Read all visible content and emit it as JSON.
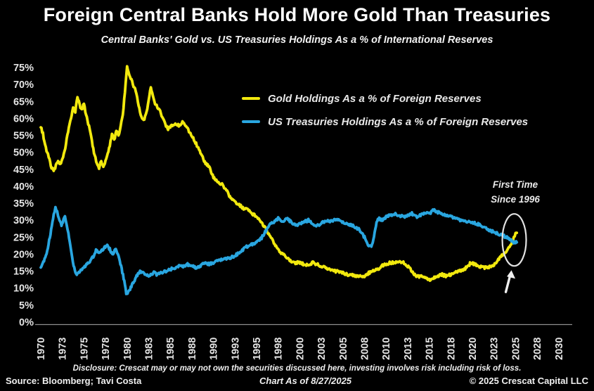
{
  "header": {
    "title": "Foreign Central Banks Hold More Gold Than Treasuries",
    "subtitle": "Central Banks' Gold vs. US Treasuries Holdings As a % of International Reserves"
  },
  "footer": {
    "disclosure": "Disclosure: Crescat may or may not own the securities discussed here, investing involves risk including risk of loss.",
    "source": "Source: Bloomberg; Tavi Costa",
    "as_of": "Chart As of 8/27/2025",
    "copyright": "© 2025 Crescat Capital LLC"
  },
  "chart_data": {
    "type": "line",
    "title": "Foreign Central Banks Hold More Gold Than Treasuries",
    "subtitle": "Central Banks' Gold vs. US Treasuries Holdings As a % of International Reserves",
    "xlabel": "",
    "ylabel": "",
    "ylim": [
      0,
      75
    ],
    "xlim": [
      1970,
      2030
    ],
    "grid": false,
    "legend_position": "upper middle",
    "background": "#000000",
    "y_tick_labels": [
      "75%",
      "70%",
      "65%",
      "60%",
      "55%",
      "50%",
      "45%",
      "40%",
      "35%",
      "30%",
      "25%",
      "20%",
      "15%",
      "10%",
      "5%",
      "0%"
    ],
    "x_tick_labels": [
      "1970",
      "1973",
      "1975",
      "1978",
      "1980",
      "1983",
      "1985",
      "1988",
      "1990",
      "1993",
      "1995",
      "1998",
      "2000",
      "2003",
      "2005",
      "2008",
      "2010",
      "2013",
      "2015",
      "2018",
      "2020",
      "2023",
      "2025",
      "2028",
      "2030"
    ],
    "annotation": {
      "label_line1": "First Time",
      "label_line2": "Since 1996",
      "x_year": 2024.85,
      "y_value": 24.2
    },
    "series": [
      {
        "id": "gold-series",
        "name": "Gold Holdings As a % of Foreign Reserves",
        "color": "#f2e90e",
        "points": [
          [
            1970.0,
            57.5
          ],
          [
            1970.25,
            55.5
          ],
          [
            1970.5,
            52
          ],
          [
            1970.75,
            50
          ],
          [
            1971.0,
            48
          ],
          [
            1971.25,
            45.5
          ],
          [
            1971.5,
            44.5
          ],
          [
            1971.75,
            46
          ],
          [
            1972.0,
            47.5
          ],
          [
            1972.25,
            46.5
          ],
          [
            1972.5,
            48
          ],
          [
            1972.75,
            50
          ],
          [
            1973.0,
            54
          ],
          [
            1973.25,
            57
          ],
          [
            1973.5,
            60
          ],
          [
            1973.75,
            63.5
          ],
          [
            1974.0,
            62
          ],
          [
            1974.25,
            66.5
          ],
          [
            1974.5,
            64
          ],
          [
            1974.75,
            62.5
          ],
          [
            1975.0,
            64.5
          ],
          [
            1975.25,
            61
          ],
          [
            1975.5,
            58.5
          ],
          [
            1975.75,
            56
          ],
          [
            1976.0,
            52
          ],
          [
            1976.25,
            49
          ],
          [
            1976.5,
            46.5
          ],
          [
            1976.75,
            45.5
          ],
          [
            1977.0,
            47.5
          ],
          [
            1977.25,
            46
          ],
          [
            1977.5,
            47.5
          ],
          [
            1977.75,
            49.5
          ],
          [
            1978.0,
            52
          ],
          [
            1978.25,
            55.5
          ],
          [
            1978.5,
            53.5
          ],
          [
            1978.75,
            56.5
          ],
          [
            1979.0,
            55
          ],
          [
            1979.25,
            57.5
          ],
          [
            1979.5,
            61
          ],
          [
            1979.75,
            68
          ],
          [
            1980.0,
            75
          ],
          [
            1980.25,
            73
          ],
          [
            1980.5,
            71.5
          ],
          [
            1980.75,
            69.5
          ],
          [
            1981.0,
            68
          ],
          [
            1981.25,
            65
          ],
          [
            1981.5,
            62
          ],
          [
            1981.75,
            60
          ],
          [
            1982.0,
            59.5
          ],
          [
            1982.25,
            62
          ],
          [
            1982.5,
            65.5
          ],
          [
            1982.75,
            69
          ],
          [
            1983.0,
            66.5
          ],
          [
            1983.25,
            64.5
          ],
          [
            1983.5,
            63.5
          ],
          [
            1983.75,
            62.5
          ],
          [
            1984.0,
            61
          ],
          [
            1984.25,
            59.5
          ],
          [
            1984.5,
            58
          ],
          [
            1984.75,
            57
          ],
          [
            1985.0,
            57.5
          ],
          [
            1985.5,
            58.5
          ],
          [
            1986.0,
            58
          ],
          [
            1986.5,
            59
          ],
          [
            1987.0,
            57
          ],
          [
            1987.5,
            55
          ],
          [
            1988.0,
            52.5
          ],
          [
            1988.5,
            50
          ],
          [
            1989.0,
            47
          ],
          [
            1989.5,
            46
          ],
          [
            1990.0,
            42.5
          ],
          [
            1990.5,
            41.5
          ],
          [
            1991.0,
            40.5
          ],
          [
            1991.5,
            39
          ],
          [
            1992.0,
            36.5
          ],
          [
            1992.5,
            35.5
          ],
          [
            1993.0,
            34.5
          ],
          [
            1993.5,
            33.5
          ],
          [
            1994.0,
            33
          ],
          [
            1994.5,
            32
          ],
          [
            1995.0,
            31
          ],
          [
            1995.5,
            29.5
          ],
          [
            1996.0,
            28
          ],
          [
            1996.5,
            25.5
          ],
          [
            1997.0,
            23.5
          ],
          [
            1997.5,
            21.5
          ],
          [
            1998.0,
            20
          ],
          [
            1998.5,
            19
          ],
          [
            1999.0,
            18
          ],
          [
            1999.5,
            17.5
          ],
          [
            2000.0,
            17.5
          ],
          [
            2000.5,
            17
          ],
          [
            2001.0,
            17
          ],
          [
            2001.5,
            17.5
          ],
          [
            2002.0,
            17
          ],
          [
            2002.5,
            16.5
          ],
          [
            2003.0,
            16
          ],
          [
            2003.5,
            15.5
          ],
          [
            2004.0,
            15
          ],
          [
            2004.5,
            15
          ],
          [
            2005.0,
            14.5
          ],
          [
            2005.5,
            14
          ],
          [
            2006.0,
            14
          ],
          [
            2006.5,
            13.5
          ],
          [
            2007.0,
            13.5
          ],
          [
            2007.5,
            13.5
          ],
          [
            2008.0,
            14.5
          ],
          [
            2008.5,
            15
          ],
          [
            2009.0,
            15.5
          ],
          [
            2009.5,
            16.5
          ],
          [
            2010.0,
            17
          ],
          [
            2010.5,
            17.5
          ],
          [
            2011.0,
            17.5
          ],
          [
            2011.5,
            18
          ],
          [
            2012.0,
            17.5
          ],
          [
            2012.5,
            16.5
          ],
          [
            2013.0,
            15
          ],
          [
            2013.5,
            13.5
          ],
          [
            2014.0,
            13.5
          ],
          [
            2014.5,
            13
          ],
          [
            2015.0,
            12.5
          ],
          [
            2015.5,
            13
          ],
          [
            2016.0,
            13.5
          ],
          [
            2016.5,
            14
          ],
          [
            2017.0,
            13.5
          ],
          [
            2017.5,
            14
          ],
          [
            2018.0,
            14.5
          ],
          [
            2018.5,
            15
          ],
          [
            2019.0,
            15.5
          ],
          [
            2019.5,
            16.5
          ],
          [
            2019.8,
            17.5
          ],
          [
            2020.3,
            17
          ],
          [
            2021.0,
            16.2
          ],
          [
            2021.5,
            16
          ],
          [
            2022.0,
            16.3
          ],
          [
            2022.5,
            17
          ],
          [
            2023.0,
            18.5
          ],
          [
            2023.4,
            19.5
          ],
          [
            2023.7,
            20.3
          ],
          [
            2024.0,
            21
          ],
          [
            2024.3,
            22
          ],
          [
            2024.6,
            23.5
          ],
          [
            2024.8,
            24.8
          ],
          [
            2025.0,
            26
          ],
          [
            2025.15,
            26.3
          ]
        ]
      },
      {
        "id": "treasuries-series",
        "name": "US Treasuries Holdings As a % of Foreign Reserves",
        "color": "#29a6e0",
        "points": [
          [
            1970.0,
            16
          ],
          [
            1970.3,
            17.5
          ],
          [
            1970.6,
            19.5
          ],
          [
            1970.9,
            23
          ],
          [
            1971.2,
            27
          ],
          [
            1971.5,
            31.5
          ],
          [
            1971.7,
            33.5
          ],
          [
            1971.9,
            32.5
          ],
          [
            1972.1,
            30.5
          ],
          [
            1972.4,
            28.5
          ],
          [
            1972.8,
            31
          ],
          [
            1973.0,
            29
          ],
          [
            1973.2,
            26
          ],
          [
            1973.5,
            21
          ],
          [
            1973.8,
            16.5
          ],
          [
            1974.1,
            14
          ],
          [
            1974.4,
            14.5
          ],
          [
            1974.7,
            15.5
          ],
          [
            1975.0,
            16
          ],
          [
            1975.3,
            17
          ],
          [
            1975.6,
            17.5
          ],
          [
            1976.0,
            19
          ],
          [
            1976.4,
            21
          ],
          [
            1976.7,
            20.5
          ],
          [
            1977.0,
            21
          ],
          [
            1977.4,
            22
          ],
          [
            1977.7,
            22.5
          ],
          [
            1978.0,
            21.5
          ],
          [
            1978.3,
            20
          ],
          [
            1978.7,
            21.5
          ],
          [
            1979.0,
            19.5
          ],
          [
            1979.3,
            16.5
          ],
          [
            1979.6,
            13
          ],
          [
            1979.9,
            8.5
          ],
          [
            1980.2,
            9
          ],
          [
            1980.5,
            10.5
          ],
          [
            1980.8,
            12
          ],
          [
            1981.1,
            13.5
          ],
          [
            1981.5,
            15
          ],
          [
            1981.8,
            14.5
          ],
          [
            1982.2,
            14
          ],
          [
            1982.5,
            13.5
          ],
          [
            1982.8,
            14
          ],
          [
            1983.1,
            14.5
          ],
          [
            1983.5,
            14
          ],
          [
            1984.0,
            14.5
          ],
          [
            1984.5,
            15
          ],
          [
            1985.0,
            15.5
          ],
          [
            1985.5,
            16
          ],
          [
            1986.0,
            16.5
          ],
          [
            1986.5,
            16.5
          ],
          [
            1987.0,
            17
          ],
          [
            1987.5,
            16.5
          ],
          [
            1988.0,
            16
          ],
          [
            1988.5,
            16.5
          ],
          [
            1989.0,
            17.5
          ],
          [
            1989.5,
            17
          ],
          [
            1990.0,
            17.5
          ],
          [
            1990.5,
            18
          ],
          [
            1991.0,
            18.5
          ],
          [
            1991.5,
            18.5
          ],
          [
            1992.0,
            19
          ],
          [
            1992.5,
            19.5
          ],
          [
            1993.0,
            20.5
          ],
          [
            1993.5,
            21.5
          ],
          [
            1994.0,
            22.5
          ],
          [
            1994.5,
            23
          ],
          [
            1995.0,
            23.5
          ],
          [
            1995.5,
            24.5
          ],
          [
            1996.0,
            26.5
          ],
          [
            1996.5,
            29
          ],
          [
            1997.0,
            29.5
          ],
          [
            1997.5,
            30.5
          ],
          [
            1998.0,
            29.5
          ],
          [
            1998.5,
            30.5
          ],
          [
            1999.0,
            29.5
          ],
          [
            1999.5,
            28.5
          ],
          [
            2000.0,
            29
          ],
          [
            2000.5,
            29.5
          ],
          [
            2001.0,
            30
          ],
          [
            2001.5,
            29
          ],
          [
            2002.0,
            28.5
          ],
          [
            2002.5,
            29
          ],
          [
            2003.0,
            30
          ],
          [
            2003.5,
            29.5
          ],
          [
            2004.0,
            30
          ],
          [
            2004.5,
            30.5
          ],
          [
            2005.0,
            29.5
          ],
          [
            2005.5,
            29
          ],
          [
            2006.0,
            28.5
          ],
          [
            2006.5,
            28
          ],
          [
            2007.0,
            27
          ],
          [
            2007.5,
            25
          ],
          [
            2008.0,
            22.5
          ],
          [
            2008.3,
            22
          ],
          [
            2008.6,
            25
          ],
          [
            2008.9,
            29.5
          ],
          [
            2009.2,
            30.5
          ],
          [
            2009.6,
            30
          ],
          [
            2010.0,
            31
          ],
          [
            2010.5,
            31.5
          ],
          [
            2011.0,
            32
          ],
          [
            2011.5,
            31.5
          ],
          [
            2012.0,
            31
          ],
          [
            2012.5,
            31.5
          ],
          [
            2013.0,
            32
          ],
          [
            2013.5,
            31
          ],
          [
            2014.0,
            31.5
          ],
          [
            2014.5,
            32
          ],
          [
            2015.0,
            32
          ],
          [
            2015.5,
            33
          ],
          [
            2016.0,
            32.3
          ],
          [
            2016.5,
            32
          ],
          [
            2017.0,
            31.5
          ],
          [
            2017.5,
            31
          ],
          [
            2018.0,
            30.5
          ],
          [
            2018.5,
            30
          ],
          [
            2019.0,
            30
          ],
          [
            2019.5,
            29.5
          ],
          [
            2020.0,
            29.5
          ],
          [
            2020.5,
            29
          ],
          [
            2021.0,
            28.5
          ],
          [
            2021.5,
            28
          ],
          [
            2022.0,
            27
          ],
          [
            2022.5,
            26.5
          ],
          [
            2023.0,
            26
          ],
          [
            2023.5,
            25.5
          ],
          [
            2024.0,
            25
          ],
          [
            2024.3,
            24.5
          ],
          [
            2024.6,
            23.8
          ],
          [
            2024.8,
            23.6
          ],
          [
            2025.0,
            23.4
          ],
          [
            2025.15,
            23.5
          ]
        ]
      }
    ]
  }
}
